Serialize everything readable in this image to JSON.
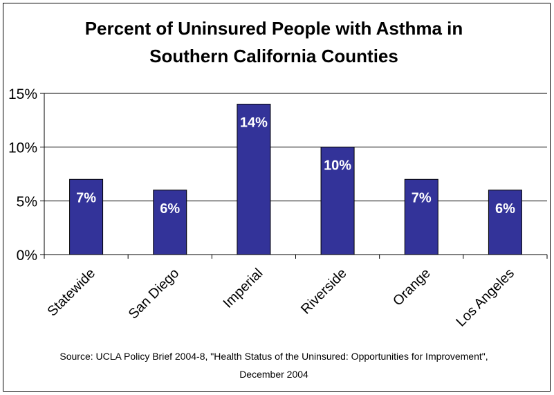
{
  "chart_data": {
    "type": "bar",
    "title_lines": [
      "Percent of Uninsured People with Asthma in",
      "Southern California Counties"
    ],
    "categories": [
      "Statewide",
      "San Diego",
      "Imperial",
      "Riverside",
      "Orange",
      "Los Angeles"
    ],
    "values": [
      7,
      6,
      14,
      10,
      7,
      6
    ],
    "data_labels": [
      "7%",
      "6%",
      "14%",
      "10%",
      "7%",
      "6%"
    ],
    "y_ticks": [
      {
        "value": 0,
        "label": "0%"
      },
      {
        "value": 5,
        "label": "5%"
      },
      {
        "value": 10,
        "label": "10%"
      },
      {
        "value": 15,
        "label": "15%"
      }
    ],
    "ylim": [
      0,
      15
    ],
    "grid": false,
    "legend": "none",
    "bar_color": "#333399",
    "source_lines": [
      "Source: UCLA Policy Brief 2004-8, \"Health Status of the Uninsured: Opportunities for Improvement\",",
      "December 2004"
    ]
  }
}
